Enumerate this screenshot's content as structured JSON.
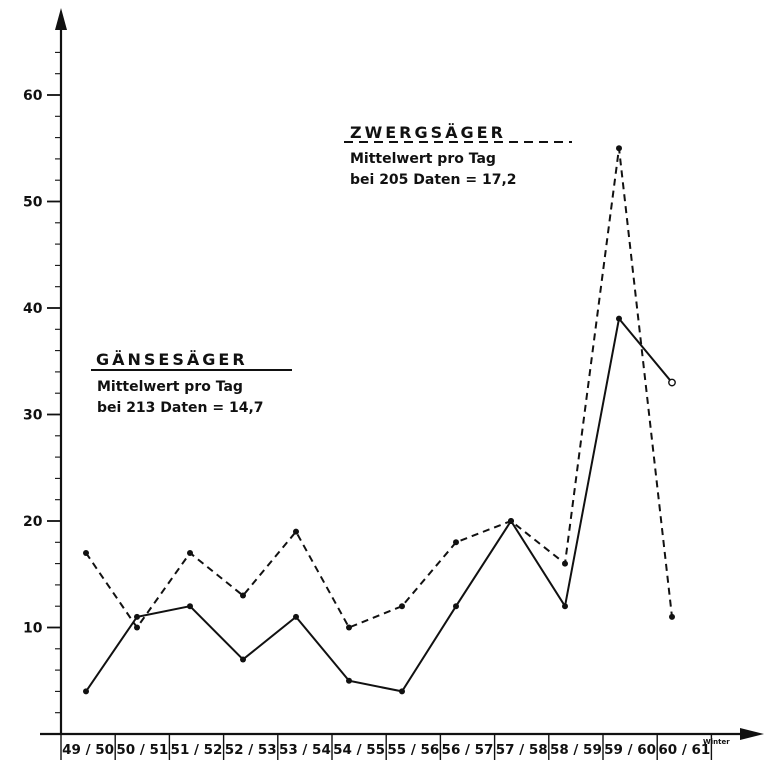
{
  "chart_data": {
    "type": "line",
    "categories": [
      "49/50",
      "50/51",
      "51/52",
      "52/53",
      "53/54",
      "54/55",
      "55/56",
      "56/57",
      "57/58",
      "58/59",
      "59/60",
      "60/61"
    ],
    "x_tick_labels": [
      "49 / 50",
      "50 / 51",
      "51 / 52",
      "52 / 53",
      "53 / 54",
      "54 / 55",
      "55 / 56",
      "56 / 57",
      "57 / 58",
      "58 / 59",
      "59 / 60",
      "60 / 61"
    ],
    "y_tick_labels": [
      "10",
      "20",
      "30",
      "40",
      "50",
      "60"
    ],
    "ylim": [
      0,
      65
    ],
    "x_unit_label": "Winter",
    "series": [
      {
        "name": "GÄNSESÄGER",
        "style": "solid",
        "color": "#111111",
        "values": [
          4,
          11,
          12,
          7,
          11,
          5,
          4,
          12,
          20,
          12,
          39,
          33
        ]
      },
      {
        "name": "ZWERGSÄGER",
        "style": "dashed",
        "color": "#111111",
        "values": [
          17,
          10,
          17,
          13,
          19,
          10,
          12,
          18,
          20,
          16,
          55,
          11
        ]
      }
    ],
    "annotations": {
      "gaensesaeger": {
        "title": "GÄNSESÄGER",
        "line1": "Mittelwert pro Tag",
        "line2": "bei 213 Daten = 14,7"
      },
      "zwergsaeger": {
        "title": "ZWERGSÄGER",
        "line1": "Mittelwert pro Tag",
        "line2": "bei 205 Daten = 17,2"
      }
    },
    "grid": false,
    "legend": "inline annotations"
  }
}
